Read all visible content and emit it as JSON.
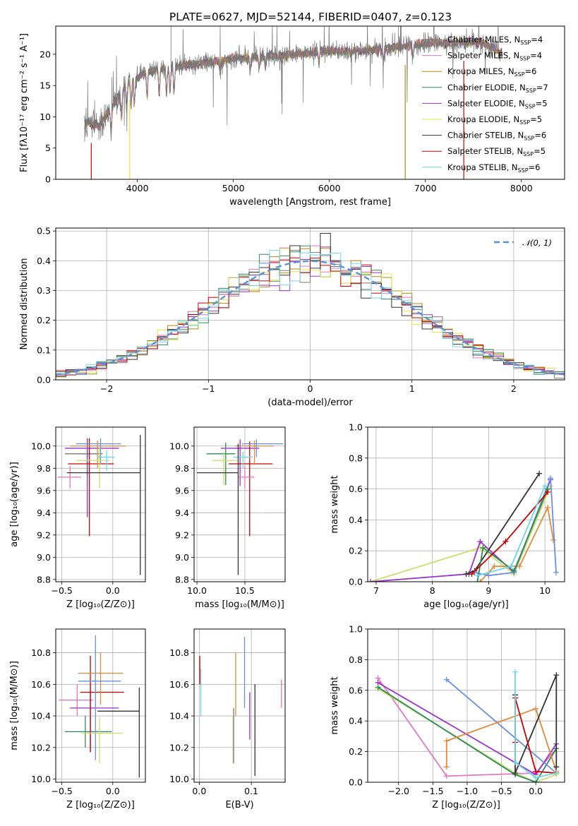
{
  "chart_data": [
    {
      "type": "line",
      "title": "PLATE=0627, MJD=52144, FIBERID=0407, z=0.123",
      "xlabel": "wavelength [Angstrom, rest frame]",
      "ylabel": "Flux [fλ10⁻¹⁷ erg cm⁻² s⁻¹ A⁻¹]",
      "xlim": [
        3150,
        8450
      ],
      "ylim": [
        0,
        24.5
      ],
      "xticks": [
        4000,
        5000,
        6000,
        7000,
        8000
      ],
      "yticks": [
        0,
        5,
        10,
        15,
        20
      ],
      "grid": false,
      "legend_position": "right",
      "series": [
        {
          "name": "Chabrier MILES, N_SSP=4",
          "color": "#777777"
        },
        {
          "name": "Salpeter MILES, N_SSP=4",
          "color": "#e377c2"
        },
        {
          "name": "Kroupa MILES, N_SSP=6",
          "color": "#b8860b"
        },
        {
          "name": "Chabrier ELODIE, N_SSP=7",
          "color": "#2e8b57"
        },
        {
          "name": "Salpeter ELODIE, N_SSP=5",
          "color": "#9932cc"
        },
        {
          "name": "Kroupa ELODIE, N_SSP=5",
          "color": "#e3e34a"
        },
        {
          "name": "Chabrier STELIB, N_SSP=6",
          "color": "#333333"
        },
        {
          "name": "Salpeter STELIB, N_SSP=5",
          "color": "#cc0000"
        },
        {
          "name": "Kroupa STELIB, N_SSP=6",
          "color": "#6fd6e8"
        }
      ],
      "continuum": [
        [
          3450,
          9.1
        ],
        [
          3600,
          8.5
        ],
        [
          3700,
          10.8
        ],
        [
          3800,
          13.2
        ],
        [
          3900,
          15.5
        ],
        [
          4000,
          16.2
        ],
        [
          4100,
          17.2
        ],
        [
          4300,
          17.8
        ],
        [
          4500,
          18.2
        ],
        [
          4700,
          18.6
        ],
        [
          5000,
          19.3
        ],
        [
          5300,
          19.6
        ],
        [
          5500,
          19.8
        ],
        [
          5800,
          20.2
        ],
        [
          6000,
          20.6
        ],
        [
          6200,
          20.4
        ],
        [
          6500,
          20.7
        ],
        [
          6800,
          21.3
        ],
        [
          7000,
          21.7
        ],
        [
          7200,
          21.8
        ],
        [
          7500,
          22.0
        ],
        [
          7700,
          21.2
        ],
        [
          7800,
          19.8
        ]
      ]
    },
    {
      "type": "line",
      "xlabel": "(data-model)/error",
      "ylabel": "Normed distribution",
      "xlim": [
        -2.5,
        2.5
      ],
      "ylim": [
        0,
        0.51
      ],
      "xticks": [
        -2,
        -1,
        0,
        1,
        2
      ],
      "yticks": [
        0.0,
        0.1,
        0.2,
        0.3,
        0.4,
        0.5
      ],
      "grid": true,
      "legend_position": "top-right",
      "reference_curve": {
        "name": "𝒩(0, 1)",
        "color": "#5f8fd6",
        "style": "dashed",
        "mean": 0,
        "sigma": 1
      },
      "histogram_bin_width": 0.1,
      "histogram_colors": [
        "#777777",
        "#e377c2",
        "#b8860b",
        "#2e8b57",
        "#9932cc",
        "#e3e34a",
        "#333333",
        "#cc0000",
        "#6fd6e8"
      ]
    },
    {
      "type": "scatter",
      "xlabel": "Z [log₁₀(Z/Z⊙)]",
      "ylabel": "age  [log₁₀(age/yr)]",
      "xlim": [
        -0.56,
        0.32
      ],
      "ylim": [
        8.78,
        10.17
      ],
      "xticks": [
        -0.5,
        0.0
      ],
      "yticks": [
        8.8,
        9.0,
        9.2,
        9.4,
        9.6,
        9.8,
        10.0
      ],
      "grid": true,
      "errorbars": [
        {
          "color": "#e377c2",
          "x": -0.42,
          "y": 9.72,
          "xerr": [
            0.12,
            0.11
          ],
          "yerr": [
            0.1,
            0.1
          ]
        },
        {
          "color": "#777777",
          "x": -0.25,
          "y": 9.93,
          "xerr": [
            0.22,
            0.15
          ],
          "yerr": [
            0.2,
            0.13
          ]
        },
        {
          "color": "#9932cc",
          "x": -0.25,
          "y": 9.98,
          "xerr": [
            0.22,
            0.31
          ],
          "yerr": [
            0.62,
            0.09
          ]
        },
        {
          "color": "#cc0000",
          "x": -0.23,
          "y": 9.84,
          "xerr": [
            0.21,
            0.24
          ],
          "yerr": [
            0.65,
            0.23
          ]
        },
        {
          "color": "#e08a3a",
          "x": -0.15,
          "y": 10.0,
          "xerr": [
            0.27,
            0.28
          ],
          "yerr": [
            0.2,
            0.05
          ]
        },
        {
          "color": "#6a8fe0",
          "x": -0.12,
          "y": 10.02,
          "xerr": [
            0.24,
            0.2
          ],
          "yerr": [
            0.18,
            0.05
          ]
        },
        {
          "color": "#c8e06a",
          "x": -0.13,
          "y": 9.87,
          "xerr": [
            0.23,
            0.1
          ],
          "yerr": [
            0.25,
            0.12
          ]
        },
        {
          "color": "#6fd6e8",
          "x": -0.06,
          "y": 9.9,
          "xerr": [
            0.09,
            0.08
          ],
          "yerr": [
            0.12,
            0.06
          ]
        },
        {
          "color": "#333333",
          "x": 0.27,
          "y": 9.76,
          "xerr": [
            0.72,
            0.0
          ],
          "yerr": [
            0.92,
            0.34
          ]
        }
      ]
    },
    {
      "type": "scatter",
      "xlabel": "mass [log₁₀(M/M⊙)]",
      "ylabel": "",
      "xlim": [
        9.97,
        10.92
      ],
      "ylim": [
        8.78,
        10.17
      ],
      "xticks": [
        10.0,
        10.5
      ],
      "yticks": [
        8.8,
        9.0,
        9.2,
        9.4,
        9.6,
        9.8,
        10.0
      ],
      "grid": true,
      "errorbars": [
        {
          "color": "#2e8b57",
          "x": 10.3,
          "y": 9.93,
          "xerr": [
            0.2,
            0.1
          ],
          "yerr": [
            0.28,
            0.1
          ]
        },
        {
          "color": "#9932cc",
          "x": 10.45,
          "y": 9.98,
          "xerr": [
            0.2,
            0.2
          ],
          "yerr": [
            0.34,
            0.08
          ]
        },
        {
          "color": "#cc0000",
          "x": 10.55,
          "y": 9.84,
          "xerr": [
            0.22,
            0.24
          ],
          "yerr": [
            0.65,
            0.2
          ]
        },
        {
          "color": "#e08a3a",
          "x": 10.6,
          "y": 10.0,
          "xerr": [
            0.2,
            0.2
          ],
          "yerr": [
            0.17,
            0.05
          ]
        },
        {
          "color": "#6a8fe0",
          "x": 10.62,
          "y": 10.02,
          "xerr": [
            0.15,
            0.28
          ],
          "yerr": [
            0.12,
            0.04
          ]
        },
        {
          "color": "#e377c2",
          "x": 10.5,
          "y": 9.72,
          "xerr": [
            0.07,
            0.1
          ],
          "yerr": [
            0.1,
            0.1
          ]
        },
        {
          "color": "#6fd6e8",
          "x": 10.48,
          "y": 9.9,
          "xerr": [
            0.1,
            0.1
          ],
          "yerr": [
            0.1,
            0.05
          ]
        },
        {
          "color": "#c8e06a",
          "x": 10.28,
          "y": 9.87,
          "xerr": [
            0.12,
            0.14
          ],
          "yerr": [
            0.22,
            0.08
          ]
        },
        {
          "color": "#333333",
          "x": 10.43,
          "y": 9.76,
          "xerr": [
            0.43,
            0.0
          ],
          "yerr": [
            0.92,
            0.26
          ]
        }
      ]
    },
    {
      "type": "line",
      "xlabel": "age  [log₁₀(age/yr)]",
      "ylabel": "mass weight",
      "xlim": [
        6.85,
        10.35
      ],
      "ylim": [
        0,
        1.0
      ],
      "xticks": [
        7,
        8,
        9,
        10
      ],
      "yticks": [
        0.0,
        0.2,
        0.4,
        0.6,
        0.8,
        1.0
      ],
      "grid": true,
      "series": [
        {
          "color": "#c8e06a",
          "points": [
            [
              6.9,
              0.0
            ],
            [
              8.85,
              0.22
            ],
            [
              9.45,
              0.05
            ],
            [
              10.1,
              0.62
            ]
          ]
        },
        {
          "color": "#9932cc",
          "points": [
            [
              6.9,
              0.0
            ],
            [
              8.65,
              0.05
            ],
            [
              8.85,
              0.26
            ],
            [
              9.45,
              0.06
            ],
            [
              10.1,
              0.66
            ]
          ]
        },
        {
          "color": "#333333",
          "points": [
            [
              8.6,
              0.05
            ],
            [
              8.75,
              0.07
            ],
            [
              9.9,
              0.7
            ]
          ]
        },
        {
          "color": "#e08a3a",
          "points": [
            [
              8.85,
              0.0
            ],
            [
              9.1,
              0.1
            ],
            [
              9.55,
              0.1
            ],
            [
              10.05,
              0.48
            ],
            [
              10.15,
              0.27
            ]
          ]
        },
        {
          "color": "#6a8fe0",
          "points": [
            [
              8.75,
              0.06
            ],
            [
              9.0,
              0.04
            ],
            [
              9.45,
              0.06
            ],
            [
              10.1,
              0.67
            ],
            [
              10.2,
              0.06
            ]
          ]
        },
        {
          "color": "#2e8b57",
          "points": [
            [
              8.8,
              0.0
            ],
            [
              8.9,
              0.22
            ],
            [
              9.45,
              0.07
            ],
            [
              10.05,
              0.6
            ]
          ]
        },
        {
          "color": "#cc0000",
          "points": [
            [
              8.7,
              0.05
            ],
            [
              9.3,
              0.26
            ],
            [
              10.05,
              0.58
            ]
          ]
        },
        {
          "color": "#6fd6e8",
          "points": [
            [
              8.8,
              0.04
            ],
            [
              9.4,
              0.1
            ],
            [
              10.0,
              0.62
            ]
          ]
        }
      ]
    },
    {
      "type": "scatter",
      "xlabel": "Z [log₁₀(Z/Z⊙)]",
      "ylabel": "mass [log₁₀(M/M⊙)]",
      "xlim": [
        -0.56,
        0.32
      ],
      "ylim": [
        9.98,
        10.95
      ],
      "xticks": [
        -0.5,
        0.0
      ],
      "yticks": [
        10.0,
        10.2,
        10.4,
        10.6,
        10.8
      ],
      "grid": true,
      "errorbars": [
        {
          "color": "#e377c2",
          "x": -0.35,
          "y": 10.5,
          "xerr": [
            0.18,
            0.16
          ],
          "yerr": [
            0.1,
            0.1
          ]
        },
        {
          "color": "#2e8b57",
          "x": -0.27,
          "y": 10.3,
          "xerr": [
            0.2,
            0.26
          ],
          "yerr": [
            0.1,
            0.1
          ]
        },
        {
          "color": "#9932cc",
          "x": -0.22,
          "y": 10.45,
          "xerr": [
            0.2,
            0.28
          ],
          "yerr": [
            0.28,
            0.15
          ]
        },
        {
          "color": "#cc0000",
          "x": -0.22,
          "y": 10.55,
          "xerr": [
            0.1,
            0.33
          ],
          "yerr": [
            0.38,
            0.23
          ]
        },
        {
          "color": "#e08a3a",
          "x": -0.12,
          "y": 10.67,
          "xerr": [
            0.22,
            0.22
          ],
          "yerr": [
            0.2,
            0.13
          ]
        },
        {
          "color": "#6a8fe0",
          "x": -0.17,
          "y": 10.62,
          "xerr": [
            0.17,
            0.25
          ],
          "yerr": [
            0.5,
            0.29
          ]
        },
        {
          "color": "#c8e06a",
          "x": -0.13,
          "y": 10.29,
          "xerr": [
            0.18,
            0.23
          ],
          "yerr": [
            0.19,
            0.1
          ]
        },
        {
          "color": "#333333",
          "x": 0.26,
          "y": 10.43,
          "xerr": [
            0.41,
            0.0
          ],
          "yerr": [
            0.42,
            0.15
          ]
        }
      ]
    },
    {
      "type": "scatter",
      "xlabel": "E(B-V)",
      "ylabel": "",
      "xlim": [
        -0.01,
        0.165
      ],
      "ylim": [
        9.98,
        10.95
      ],
      "xticks": [
        0.0,
        0.1
      ],
      "yticks": [
        10.0,
        10.2,
        10.4,
        10.6,
        10.8
      ],
      "grid": true,
      "errorbars": [
        {
          "color": "#cc0000",
          "x": 0.001,
          "y": 10.7,
          "yerr": [
            0.1,
            0.08
          ]
        },
        {
          "color": "#6fd6e8",
          "x": 0.003,
          "y": 10.55,
          "yerr": [
            0.15,
            0.15
          ]
        },
        {
          "color": "#c8e06a",
          "x": 0.065,
          "y": 10.3,
          "yerr": [
            0.2,
            0.1
          ]
        },
        {
          "color": "#777777",
          "x": 0.066,
          "y": 10.25,
          "yerr": [
            0.15,
            0.2
          ]
        },
        {
          "color": "#e08a3a",
          "x": 0.07,
          "y": 10.55,
          "yerr": [
            0.15,
            0.25
          ]
        },
        {
          "color": "#6a8fe0",
          "x": 0.087,
          "y": 10.7,
          "yerr": [
            0.25,
            0.2
          ]
        },
        {
          "color": "#9932cc",
          "x": 0.097,
          "y": 10.4,
          "yerr": [
            0.15,
            0.15
          ]
        },
        {
          "color": "#333333",
          "x": 0.107,
          "y": 10.3,
          "yerr": [
            0.28,
            0.3
          ]
        },
        {
          "color": "#e377c2",
          "x": 0.158,
          "y": 10.55,
          "yerr": [
            0.1,
            0.08
          ]
        }
      ]
    },
    {
      "type": "line",
      "xlabel": "Z [log₁₀(Z/Z⊙)]",
      "ylabel": "mass weight",
      "xlim": [
        -2.45,
        0.42
      ],
      "ylim": [
        0,
        1.0
      ],
      "xticks": [
        -2.0,
        -1.5,
        -1.0,
        -0.5,
        0.0
      ],
      "yticks": [
        0.0,
        0.2,
        0.4,
        0.6,
        0.8,
        1.0
      ],
      "grid": true,
      "series": [
        {
          "color": "#e377c2",
          "points": [
            [
              -2.3,
              0.68
            ],
            [
              -1.3,
              0.04
            ],
            [
              0.0,
              0.06
            ],
            [
              0.3,
              0.22
            ]
          ]
        },
        {
          "color": "#9932cc",
          "points": [
            [
              -2.3,
              0.65
            ],
            [
              0.0,
              0.05
            ],
            [
              0.3,
              0.25
            ]
          ]
        },
        {
          "color": "#c8e06a",
          "points": [
            [
              -2.3,
              0.61
            ],
            [
              -0.3,
              0.06
            ],
            [
              0.0,
              0.0
            ],
            [
              0.3,
              0.05
            ]
          ]
        },
        {
          "color": "#2e8b57",
          "points": [
            [
              -2.3,
              0.62
            ],
            [
              -0.3,
              0.05
            ],
            [
              0.0,
              0.0
            ],
            [
              0.3,
              0.22
            ]
          ]
        },
        {
          "color": "#6a8fe0",
          "points": [
            [
              -1.3,
              0.67
            ],
            [
              0.3,
              0.06
            ]
          ]
        },
        {
          "color": "#e08a3a",
          "points": [
            [
              -1.3,
              0.1
            ],
            [
              -1.3,
              0.27
            ],
            [
              0.0,
              0.48
            ],
            [
              0.3,
              0.07
            ]
          ]
        },
        {
          "color": "#333333",
          "points": [
            [
              -0.3,
              0.57
            ],
            [
              -0.3,
              0.06
            ],
            [
              0.3,
              0.7
            ],
            [
              0.3,
              0.1
            ]
          ]
        },
        {
          "color": "#cc0000",
          "points": [
            [
              -0.3,
              0.26
            ],
            [
              -0.3,
              0.55
            ],
            [
              0.0,
              0.07
            ],
            [
              0.3,
              0.06
            ]
          ]
        },
        {
          "color": "#6fd6e8",
          "points": [
            [
              -0.3,
              0.72
            ],
            [
              -0.3,
              0.13
            ],
            [
              0.0,
              0.03
            ],
            [
              0.3,
              0.06
            ]
          ]
        }
      ]
    }
  ]
}
